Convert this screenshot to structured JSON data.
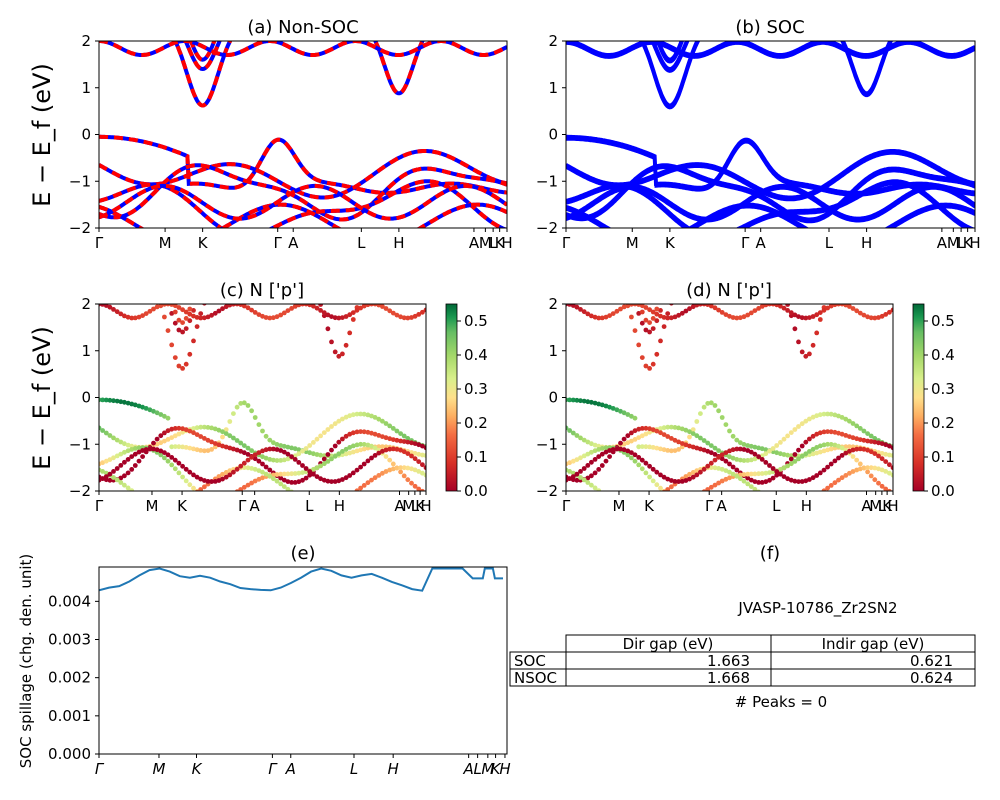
{
  "chart_data": [
    {
      "type": "line",
      "title": "(a) Non-SOC",
      "ylabel": "E − E_f (eV)",
      "ylim": [
        -2,
        2
      ],
      "yticks": [
        -2,
        -1,
        0,
        1,
        2
      ],
      "x_tick_labels": [
        "Γ",
        "M",
        "K",
        "Γ",
        "A",
        "L",
        "H",
        "A",
        "M",
        "L",
        "K",
        "H"
      ],
      "series": [
        {
          "style": "spin-up dashed",
          "color": "#0000ff"
        },
        {
          "style": "spin-down dashed",
          "color": "#ff0000"
        }
      ],
      "notes": "band structure; red/blue dashed overlapping curves",
      "conduction_band_minima_eV": [
        0.62,
        0.88
      ],
      "valence_band_maximum_eV": 0.0
    },
    {
      "type": "line",
      "title": "(b) SOC",
      "ylim": [
        -2,
        2
      ],
      "yticks": [
        -2,
        -1,
        0,
        1,
        2
      ],
      "x_tick_labels": [
        "Γ",
        "M",
        "K",
        "Γ",
        "A",
        "L",
        "H",
        "A",
        "M",
        "L",
        "K",
        "H"
      ],
      "series": [
        {
          "style": "solid",
          "color": "#0000ff"
        }
      ],
      "conduction_band_minima_eV": [
        0.62,
        0.88
      ],
      "valence_band_maximum_eV": 0.0
    },
    {
      "type": "scatter",
      "title": "(c)  N ['p']",
      "ylabel": "E − E_f (eV)",
      "ylim": [
        -2,
        2
      ],
      "yticks": [
        -2,
        -1,
        0,
        1,
        2
      ],
      "x_tick_labels": [
        "Γ",
        "M",
        "K",
        "Γ",
        "A",
        "L",
        "H",
        "A",
        "M",
        "L",
        "K",
        "H"
      ],
      "colorbar": {
        "min": 0.0,
        "max": 0.55,
        "ticks": [
          "0.0",
          "0.1",
          "0.2",
          "0.3",
          "0.4",
          "0.5"
        ],
        "colormap": "RdYlGn"
      }
    },
    {
      "type": "scatter",
      "title": "(d) N ['p']",
      "ylim": [
        -2,
        2
      ],
      "yticks": [
        -2,
        -1,
        0,
        1,
        2
      ],
      "x_tick_labels": [
        "Γ",
        "M",
        "K",
        "Γ",
        "A",
        "L",
        "H",
        "A",
        "M",
        "L",
        "K",
        "H"
      ],
      "colorbar": {
        "min": 0.0,
        "max": 0.55,
        "ticks": [
          "0.0",
          "0.1",
          "0.2",
          "0.3",
          "0.4",
          "0.5"
        ],
        "colormap": "RdYlGn"
      }
    },
    {
      "type": "line",
      "title": "(e)",
      "ylabel": "SOC spillage (chg. den. unit)",
      "ylim": [
        0,
        0.0049
      ],
      "yticks": [
        "0.000",
        "0.001",
        "0.002",
        "0.003",
        "0.004"
      ],
      "x_tick_labels": [
        "Γ",
        "M",
        "K",
        "Γ",
        "A",
        "L",
        "H",
        "A",
        "L",
        "M",
        "K",
        "H"
      ],
      "series": [
        {
          "color": "#1f77b4",
          "x": [
            0,
            0.5,
            1,
            1.5,
            2,
            2.5,
            3,
            3.5,
            4,
            4.5,
            5,
            5.5,
            6,
            6.5,
            7,
            7.5,
            8,
            8.5,
            9,
            9.5,
            10,
            10.5,
            11,
            11.5,
            12,
            12.5,
            13,
            13.5,
            14,
            14.5,
            15,
            15.5,
            16,
            16.5,
            17,
            17.5,
            18,
            18.5,
            19,
            19.1,
            19.5,
            19.6,
            19.7,
            20
          ],
          "y": [
            0.00429,
            0.00436,
            0.0044,
            0.00452,
            0.00468,
            0.00482,
            0.00486,
            0.00478,
            0.00466,
            0.00462,
            0.00467,
            0.00462,
            0.00452,
            0.00445,
            0.00435,
            0.00432,
            0.0043,
            0.00429,
            0.00436,
            0.00448,
            0.00462,
            0.00478,
            0.00486,
            0.0048,
            0.00468,
            0.00462,
            0.00468,
            0.00472,
            0.00462,
            0.00451,
            0.00442,
            0.00432,
            0.00428,
            0.00486,
            0.00486,
            0.00486,
            0.00486,
            0.0046,
            0.0046,
            0.00486,
            0.00486,
            0.0046,
            0.0046,
            0.0046
          ]
        }
      ]
    },
    {
      "type": "table",
      "title": "(f)",
      "caption": "JVASP-10786_Zr2SN2",
      "columns": [
        "Dir gap (eV)",
        "Indir gap (eV)"
      ],
      "rows": [
        {
          "label": "SOC",
          "values": [
            "1.663",
            "0.621"
          ]
        },
        {
          "label": "NSOC",
          "values": [
            "1.668",
            "0.624"
          ]
        }
      ],
      "footer": "# Peaks = 0"
    }
  ]
}
